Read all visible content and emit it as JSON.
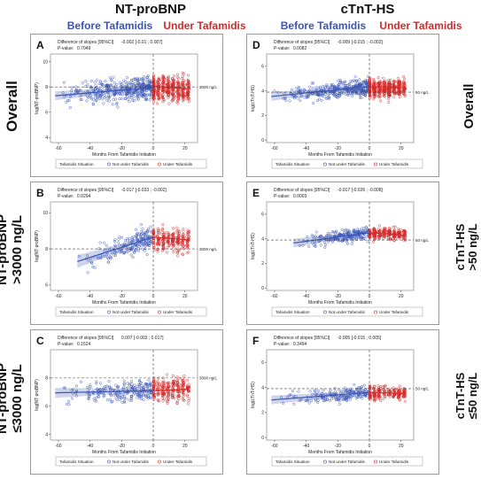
{
  "headers": {
    "col_left": "NT-proBNP",
    "col_right": "cTnT-HS",
    "before": "Before Tafamidis",
    "under": "Under Tafamidis"
  },
  "rows": {
    "overall_left": "Overall",
    "high_left_1": "NT-proBNP",
    "high_left_2": ">3000 ng/L",
    "low_left_1": "NT-proBNP",
    "low_left_2": "≤3000 ng/L",
    "overall_right": "Overall",
    "high_right_1": "cTnT-HS",
    "high_right_2": ">50 ng/L",
    "low_right_1": "cTnT-HS",
    "low_right_2": "≤50 ng/L"
  },
  "colors": {
    "before": "#3a55b4",
    "under": "#d42a2a"
  },
  "chart_data": [
    {
      "panel": "A",
      "type": "scatter",
      "title": "",
      "xlabel": "Months From Tafamidis Initiation",
      "ylabel": "log(NT-proBNP)",
      "xlim": [
        -65,
        28
      ],
      "ylim": [
        3.6,
        10.6
      ],
      "xticks": [
        -60,
        -40,
        -20,
        0,
        20
      ],
      "yticks": [
        4,
        6,
        8,
        10
      ],
      "ref_y": 8.0,
      "ref_label": "3000 ng/L",
      "diff_label": "Difference of slopes [95%CI]",
      "diff_value": "-0.002 [-0.01 ; 0.007]",
      "p_label": "P-value:",
      "p_value": "0.7049",
      "legend_title": "Tafamidis Situation",
      "legend": [
        "Not under Tafamidis",
        "Under Tafamidis"
      ],
      "before": {
        "center": 7.9,
        "spread": 0.75,
        "n": 420,
        "xmin": -62,
        "line": [
          [
            -62,
            7.3
          ],
          [
            0,
            7.95
          ]
        ]
      },
      "under": {
        "center": 7.85,
        "spread": 0.85,
        "n": 460,
        "xmax": 22,
        "line": [
          [
            0,
            8.05
          ],
          [
            22,
            7.85
          ]
        ]
      }
    },
    {
      "panel": "B",
      "type": "scatter",
      "title": "",
      "xlabel": "Months From Tafamidis Initiation",
      "ylabel": "log(NT-proBNP)",
      "xlim": [
        -65,
        28
      ],
      "ylim": [
        5.7,
        10.6
      ],
      "xticks": [
        -60,
        -40,
        -20,
        0,
        20
      ],
      "yticks": [
        6,
        8,
        10
      ],
      "ref_y": 8.0,
      "ref_label": "3000 ng/L",
      "diff_label": "Difference of slopes [95%CI]",
      "diff_value": "-0.017 [-0.033 ; -0.002]",
      "p_label": "P-value:",
      "p_value": "0.0294",
      "legend_title": "Tafamidis Situation",
      "legend": [
        "Not under Tafamidis",
        "Under Tafamidis"
      ],
      "before": {
        "center": 8.4,
        "spread": 0.55,
        "n": 200,
        "xmin": -48,
        "line": [
          [
            -48,
            7.3
          ],
          [
            0,
            8.65
          ]
        ]
      },
      "under": {
        "center": 8.5,
        "spread": 0.55,
        "n": 260,
        "xmax": 22,
        "line": [
          [
            0,
            8.65
          ],
          [
            22,
            8.5
          ]
        ]
      }
    },
    {
      "panel": "C",
      "type": "scatter",
      "title": "",
      "xlabel": "Months From Tafamidis Initiation",
      "ylabel": "log(NT-proBNP)",
      "xlim": [
        -65,
        28
      ],
      "ylim": [
        3.6,
        10.0
      ],
      "xticks": [
        -60,
        -40,
        -20,
        0,
        20
      ],
      "yticks": [
        4,
        6,
        8
      ],
      "ref_y": 8.0,
      "ref_label": "3000 ng/L",
      "diff_label": "Difference of slopes [95%CI]",
      "diff_value": "0.007 [-0.003 ; 0.017]",
      "p_label": "P-value:",
      "p_value": "0.1524",
      "legend_title": "Tafamidis Situation",
      "legend": [
        "Not under Tafamidis",
        "Under Tafamidis"
      ],
      "before": {
        "center": 7.2,
        "spread": 0.6,
        "n": 230,
        "xmin": -62,
        "line": [
          [
            -62,
            6.95
          ],
          [
            0,
            7.1
          ]
        ]
      },
      "under": {
        "center": 7.2,
        "spread": 0.7,
        "n": 260,
        "xmax": 22,
        "line": [
          [
            0,
            7.1
          ],
          [
            22,
            7.2
          ]
        ]
      }
    },
    {
      "panel": "D",
      "type": "scatter",
      "title": "",
      "xlabel": "Months From Tafamidis Initiation",
      "ylabel": "log(cTnT-HS)",
      "xlim": [
        -65,
        28
      ],
      "ylim": [
        -0.2,
        7.0
      ],
      "xticks": [
        -60,
        -40,
        -20,
        0,
        20
      ],
      "yticks": [
        0,
        2,
        4,
        6
      ],
      "ref_y": 3.9,
      "ref_label": "50 ng/L",
      "diff_label": "Difference of slopes [95%CI]",
      "diff_value": "-0.009 [-0.015 ; -0.002]",
      "p_label": "P-value:",
      "p_value": "0.0082",
      "legend_title": "Tafamidis Situation",
      "legend": [
        "Not under Tafamidis",
        "Under Tafamidis"
      ],
      "before": {
        "center": 4.1,
        "spread": 0.55,
        "n": 380,
        "xmin": -62,
        "line": [
          [
            -62,
            3.55
          ],
          [
            0,
            4.35
          ]
        ]
      },
      "under": {
        "center": 4.2,
        "spread": 0.6,
        "n": 460,
        "xmax": 22,
        "line": [
          [
            0,
            4.35
          ],
          [
            22,
            4.25
          ]
        ]
      }
    },
    {
      "panel": "E",
      "type": "scatter",
      "title": "",
      "xlabel": "Months From Tafamidis Initiation",
      "ylabel": "log(cTnT-HS)",
      "xlim": [
        -65,
        28
      ],
      "ylim": [
        -0.2,
        7.0
      ],
      "xticks": [
        -60,
        -40,
        -20,
        0,
        20
      ],
      "yticks": [
        0,
        2,
        4,
        6
      ],
      "ref_y": 3.9,
      "ref_label": "50 ng/L",
      "diff_label": "Difference of slopes [95%CI]",
      "diff_value": "-0.017 [-0.026 ; -0.008]",
      "p_label": "P-value:",
      "p_value": "0.0003",
      "legend_title": "Tafamidis Situation",
      "legend": [
        "Not under Tafamidis",
        "Under Tafamidis"
      ],
      "before": {
        "center": 4.2,
        "spread": 0.45,
        "n": 230,
        "xmin": -48,
        "line": [
          [
            -48,
            3.65
          ],
          [
            0,
            4.5
          ]
        ]
      },
      "under": {
        "center": 4.4,
        "spread": 0.4,
        "n": 280,
        "xmax": 22,
        "line": [
          [
            0,
            4.5
          ],
          [
            22,
            4.3
          ]
        ]
      }
    },
    {
      "panel": "F",
      "type": "scatter",
      "title": "",
      "xlabel": "Months From Tafamidis Initiation",
      "ylabel": "log(cTnT-HS)",
      "xlim": [
        -65,
        28
      ],
      "ylim": [
        -0.2,
        7.0
      ],
      "xticks": [
        -60,
        -40,
        -20,
        0,
        20
      ],
      "yticks": [
        0,
        2,
        4,
        6
      ],
      "ref_y": 3.9,
      "ref_label": "50 ng/L",
      "diff_label": "Difference of slopes [95%CI]",
      "diff_value": "-0.005 [-0.015 ; 0.005]",
      "p_label": "P-value:",
      "p_value": "0.3494",
      "legend_title": "Tafamidis Situation",
      "legend": [
        "Not under Tafamidis",
        "Under Tafamidis"
      ],
      "before": {
        "center": 3.4,
        "spread": 0.45,
        "n": 200,
        "xmin": -62,
        "line": [
          [
            -62,
            3.0
          ],
          [
            0,
            3.6
          ]
        ]
      },
      "under": {
        "center": 3.5,
        "spread": 0.45,
        "n": 240,
        "xmax": 22,
        "line": [
          [
            0,
            3.6
          ],
          [
            22,
            3.5
          ]
        ]
      }
    }
  ]
}
